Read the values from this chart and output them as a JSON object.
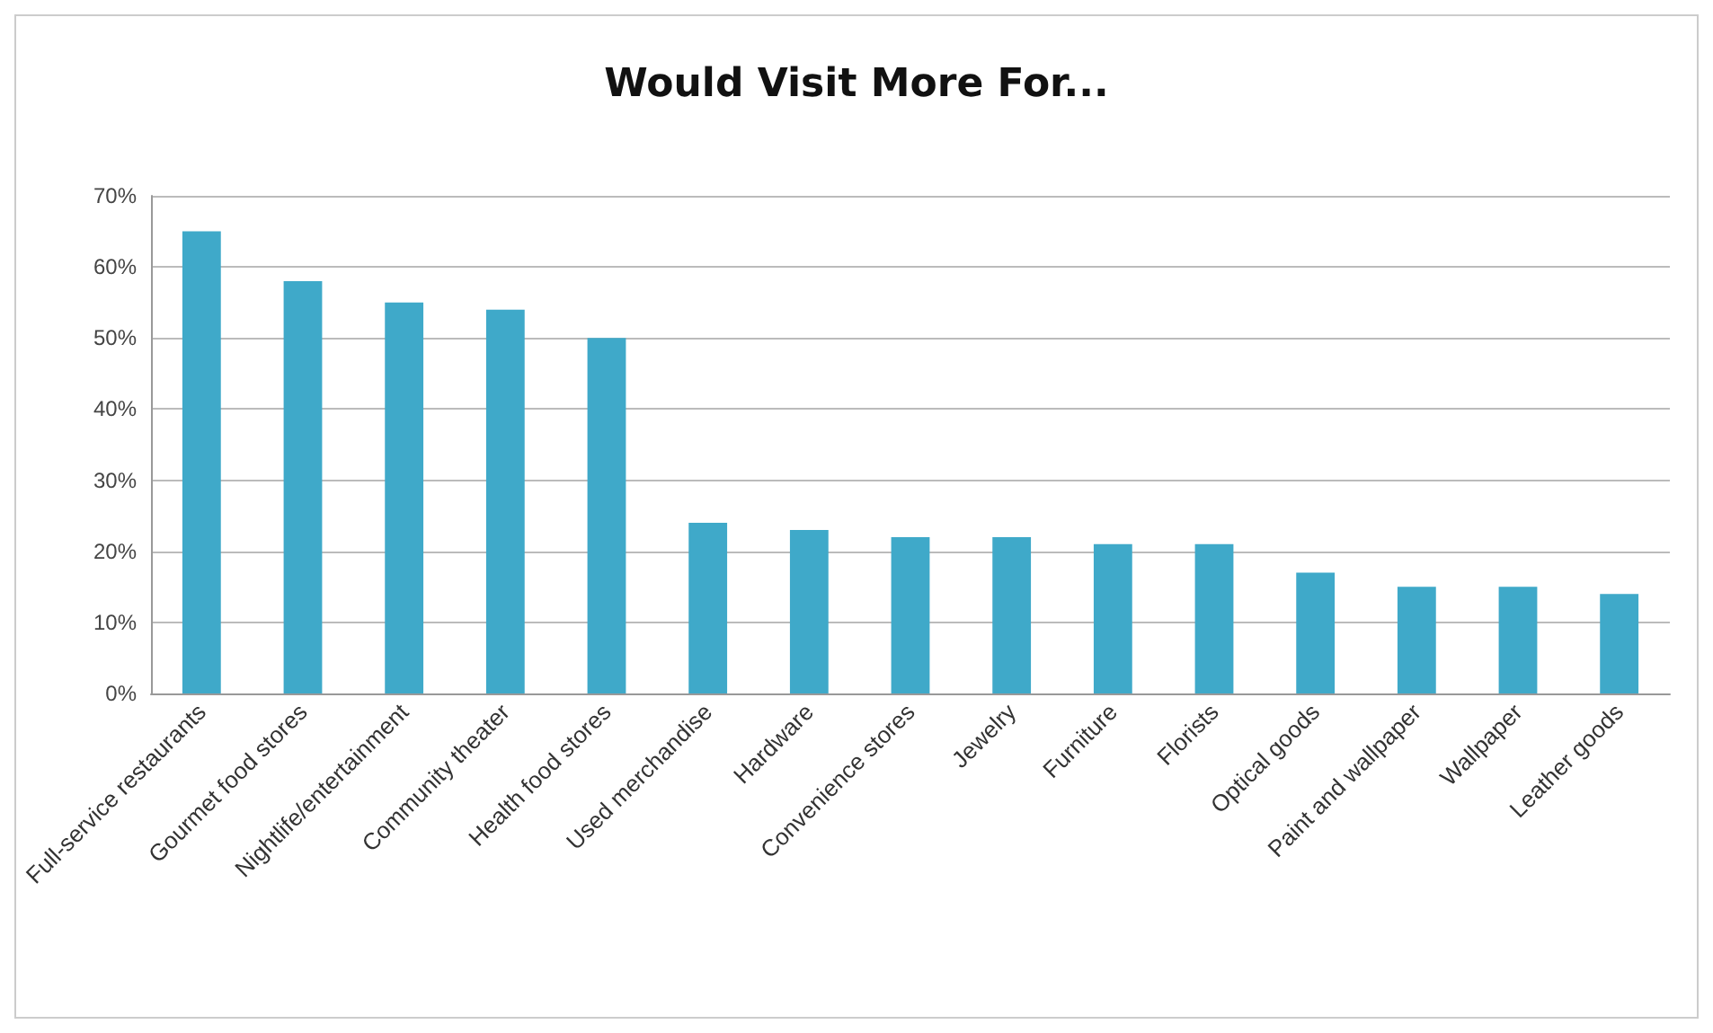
{
  "chart_data": {
    "type": "bar",
    "title": "Would Visit More For...",
    "categories": [
      "Full-service restaurants",
      "Gourmet food stores",
      "Nightlife/entertainment",
      "Community theater",
      "Health food stores",
      "Used merchandise",
      "Hardware",
      "Convenience stores",
      "Jewelry",
      "Furniture",
      "Florists",
      "Optical goods",
      "Paint and wallpaper",
      "Wallpaper",
      "Leather goods"
    ],
    "values": [
      65,
      58,
      55,
      54,
      50,
      24,
      23,
      22,
      22,
      21,
      21,
      17,
      15,
      15,
      14
    ],
    "color": "#3fa9c9",
    "ylim": [
      0,
      70
    ],
    "yticks": [
      {
        "value": 0,
        "label": "0%"
      },
      {
        "value": 10,
        "label": "10%"
      },
      {
        "value": 20,
        "label": "20%"
      },
      {
        "value": 30,
        "label": "30%"
      },
      {
        "value": 40,
        "label": "40%"
      },
      {
        "value": 50,
        "label": "50%"
      },
      {
        "value": 60,
        "label": "60%"
      },
      {
        "value": 70,
        "label": "70%"
      }
    ],
    "grid": "y"
  }
}
